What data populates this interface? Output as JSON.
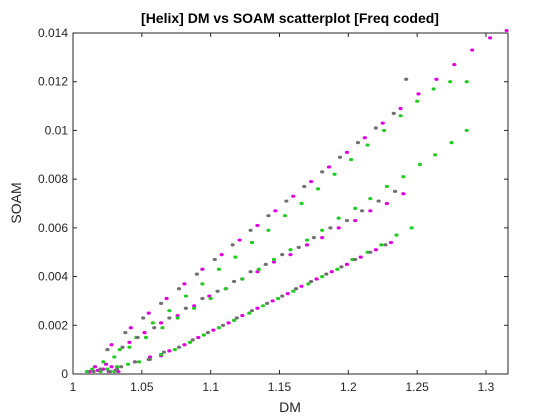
{
  "chart_data": {
    "type": "scatter",
    "title": "[Helix] DM vs SOAM scatterplot [Freq coded]",
    "xlabel": "DM",
    "ylabel": "SOAM",
    "xlim": [
      1,
      1.316
    ],
    "ylim": [
      0,
      0.014
    ],
    "xticks": [
      1,
      1.05,
      1.1,
      1.15,
      1.2,
      1.25,
      1.3
    ],
    "xtick_labels": [
      "1",
      "1.05",
      "1.1",
      "1.15",
      "1.2",
      "1.25",
      "1.3"
    ],
    "yticks": [
      0,
      0.002,
      0.004,
      0.006,
      0.008,
      0.01,
      0.012,
      0.014
    ],
    "ytick_labels": [
      "0",
      "0.002",
      "0.004",
      "0.006",
      "0.008",
      "0.01",
      "0.012",
      "0.014"
    ],
    "grid": false,
    "series": [
      {
        "color": "#e000e0",
        "points": [
          [
            1.028,
            0.0003
          ],
          [
            1.045,
            0.0005
          ],
          [
            1.056,
            0.0007
          ],
          [
            1.064,
            0.00075
          ],
          [
            1.07,
            0.00095
          ],
          [
            1.081,
            0.0012
          ],
          [
            1.091,
            0.0015
          ],
          [
            1.102,
            0.0018
          ],
          [
            1.113,
            0.0021
          ],
          [
            1.123,
            0.0024
          ],
          [
            1.134,
            0.0027
          ],
          [
            1.145,
            0.003
          ],
          [
            1.156,
            0.0033
          ],
          [
            1.166,
            0.0036
          ],
          [
            1.177,
            0.0039
          ],
          [
            1.188,
            0.0042
          ],
          [
            1.199,
            0.0045
          ],
          [
            1.209,
            0.0048
          ],
          [
            1.22,
            0.0051
          ],
          [
            1.231,
            0.0054
          ],
          [
            1.041,
            0.0013
          ],
          [
            1.052,
            0.0017
          ],
          [
            1.064,
            0.0021
          ],
          [
            1.076,
            0.0024
          ],
          [
            1.088,
            0.0028
          ],
          [
            1.099,
            0.0032
          ],
          [
            1.111,
            0.0035
          ],
          [
            1.123,
            0.0039
          ],
          [
            1.134,
            0.0042
          ],
          [
            1.146,
            0.0046
          ],
          [
            1.158,
            0.0049
          ],
          [
            1.17,
            0.0053
          ],
          [
            1.181,
            0.0056
          ],
          [
            1.193,
            0.006
          ],
          [
            1.205,
            0.0063
          ],
          [
            1.216,
            0.0067
          ],
          [
            1.228,
            0.007
          ],
          [
            1.24,
            0.0074
          ],
          [
            1.028,
            0.0012
          ],
          [
            1.042,
            0.0019
          ],
          [
            1.055,
            0.0025
          ],
          [
            1.068,
            0.0031
          ],
          [
            1.081,
            0.0037
          ],
          [
            1.094,
            0.0043
          ],
          [
            1.108,
            0.0049
          ],
          [
            1.121,
            0.0055
          ],
          [
            1.134,
            0.0061
          ],
          [
            1.147,
            0.0067
          ],
          [
            1.16,
            0.0073
          ],
          [
            1.173,
            0.0079
          ],
          [
            1.186,
            0.0085
          ],
          [
            1.199,
            0.0091
          ],
          [
            1.212,
            0.0097
          ],
          [
            1.225,
            0.0103
          ],
          [
            1.238,
            0.0109
          ],
          [
            1.251,
            0.0115
          ],
          [
            1.264,
            0.0121
          ],
          [
            1.277,
            0.0127
          ],
          [
            1.29,
            0.0133
          ],
          [
            1.303,
            0.0138
          ],
          [
            1.315,
            0.0141
          ],
          [
            1.012,
            0.0001
          ],
          [
            1.018,
            0.00015
          ],
          [
            1.022,
            0.0002
          ],
          [
            1.026,
            0.0001
          ],
          [
            1.031,
            0.00015
          ],
          [
            1.016,
            0.0003
          ],
          [
            1.024,
            0.0004
          ],
          [
            1.033,
            0.0001
          ]
        ]
      },
      {
        "color": "#22cc22",
        "points": [
          [
            1.032,
            0.0003
          ],
          [
            1.04,
            0.0004
          ],
          [
            1.048,
            0.0005
          ],
          [
            1.056,
            0.0006
          ],
          [
            1.064,
            0.0008
          ],
          [
            1.074,
            0.001
          ],
          [
            1.085,
            0.0013
          ],
          [
            1.095,
            0.0016
          ],
          [
            1.106,
            0.0019
          ],
          [
            1.117,
            0.0022
          ],
          [
            1.128,
            0.0025
          ],
          [
            1.138,
            0.0028
          ],
          [
            1.149,
            0.0031
          ],
          [
            1.16,
            0.0034
          ],
          [
            1.171,
            0.0037
          ],
          [
            1.181,
            0.004
          ],
          [
            1.192,
            0.0043
          ],
          [
            1.203,
            0.0047
          ],
          [
            1.214,
            0.005
          ],
          [
            1.224,
            0.0053
          ],
          [
            1.235,
            0.0057
          ],
          [
            1.246,
            0.006
          ],
          [
            1.03,
            0.0007
          ],
          [
            1.041,
            0.0011
          ],
          [
            1.053,
            0.0015
          ],
          [
            1.065,
            0.0019
          ],
          [
            1.076,
            0.0023
          ],
          [
            1.088,
            0.0027
          ],
          [
            1.1,
            0.0031
          ],
          [
            1.111,
            0.0035
          ],
          [
            1.123,
            0.0039
          ],
          [
            1.135,
            0.0043
          ],
          [
            1.146,
            0.0047
          ],
          [
            1.158,
            0.0051
          ],
          [
            1.17,
            0.0055
          ],
          [
            1.181,
            0.0059
          ],
          [
            1.193,
            0.0064
          ],
          [
            1.205,
            0.0068
          ],
          [
            1.216,
            0.0072
          ],
          [
            1.228,
            0.0077
          ],
          [
            1.24,
            0.0081
          ],
          [
            1.252,
            0.0086
          ],
          [
            1.263,
            0.009
          ],
          [
            1.275,
            0.0095
          ],
          [
            1.286,
            0.01
          ],
          [
            1.022,
            0.0005
          ],
          [
            1.034,
            0.001
          ],
          [
            1.046,
            0.0015
          ],
          [
            1.058,
            0.0021
          ],
          [
            1.07,
            0.0026
          ],
          [
            1.082,
            0.0032
          ],
          [
            1.094,
            0.0037
          ],
          [
            1.106,
            0.0043
          ],
          [
            1.118,
            0.0048
          ],
          [
            1.13,
            0.0054
          ],
          [
            1.142,
            0.0059
          ],
          [
            1.154,
            0.0065
          ],
          [
            1.166,
            0.007
          ],
          [
            1.178,
            0.0076
          ],
          [
            1.19,
            0.0082
          ],
          [
            1.202,
            0.0088
          ],
          [
            1.214,
            0.0094
          ],
          [
            1.226,
            0.01
          ],
          [
            1.238,
            0.0106
          ],
          [
            1.25,
            0.0112
          ],
          [
            1.262,
            0.0117
          ],
          [
            1.274,
            0.012
          ],
          [
            1.286,
            0.012
          ],
          [
            1.01,
            0.0001
          ],
          [
            1.014,
            0.0002
          ],
          [
            1.02,
            0.0001
          ],
          [
            1.025,
            0.0002
          ],
          [
            1.03,
            0.0001
          ]
        ]
      },
      {
        "color": "#707070",
        "points": [
          [
            1.035,
            0.0003
          ],
          [
            1.045,
            0.0005
          ],
          [
            1.055,
            0.0006
          ],
          [
            1.066,
            0.0009
          ],
          [
            1.077,
            0.0011
          ],
          [
            1.087,
            0.0014
          ],
          [
            1.098,
            0.0017
          ],
          [
            1.109,
            0.002
          ],
          [
            1.119,
            0.0023
          ],
          [
            1.13,
            0.0026
          ],
          [
            1.141,
            0.0029
          ],
          [
            1.152,
            0.0032
          ],
          [
            1.162,
            0.0035
          ],
          [
            1.173,
            0.0038
          ],
          [
            1.184,
            0.0041
          ],
          [
            1.195,
            0.0044
          ],
          [
            1.205,
            0.0047
          ],
          [
            1.216,
            0.005
          ],
          [
            1.227,
            0.0053
          ],
          [
            1.036,
            0.0011
          ],
          [
            1.047,
            0.0015
          ],
          [
            1.059,
            0.0019
          ],
          [
            1.07,
            0.0023
          ],
          [
            1.082,
            0.0027
          ],
          [
            1.094,
            0.0031
          ],
          [
            1.105,
            0.0034
          ],
          [
            1.117,
            0.0038
          ],
          [
            1.129,
            0.0042
          ],
          [
            1.14,
            0.0045
          ],
          [
            1.152,
            0.0049
          ],
          [
            1.164,
            0.0052
          ],
          [
            1.175,
            0.0056
          ],
          [
            1.187,
            0.006
          ],
          [
            1.199,
            0.0063
          ],
          [
            1.21,
            0.0067
          ],
          [
            1.222,
            0.0071
          ],
          [
            1.234,
            0.0075
          ],
          [
            1.025,
            0.001
          ],
          [
            1.038,
            0.0017
          ],
          [
            1.051,
            0.0023
          ],
          [
            1.064,
            0.0029
          ],
          [
            1.077,
            0.0035
          ],
          [
            1.09,
            0.0041
          ],
          [
            1.103,
            0.0047
          ],
          [
            1.116,
            0.0053
          ],
          [
            1.129,
            0.0059
          ],
          [
            1.142,
            0.0065
          ],
          [
            1.155,
            0.0071
          ],
          [
            1.168,
            0.0077
          ],
          [
            1.181,
            0.0083
          ],
          [
            1.194,
            0.0089
          ],
          [
            1.207,
            0.0095
          ],
          [
            1.22,
            0.0101
          ],
          [
            1.233,
            0.0107
          ],
          [
            1.242,
            0.0121
          ],
          [
            1.015,
            0.0001
          ],
          [
            1.02,
            0.0002
          ],
          [
            1.027,
            0.0001
          ],
          [
            1.032,
            0.0002
          ]
        ]
      }
    ]
  }
}
